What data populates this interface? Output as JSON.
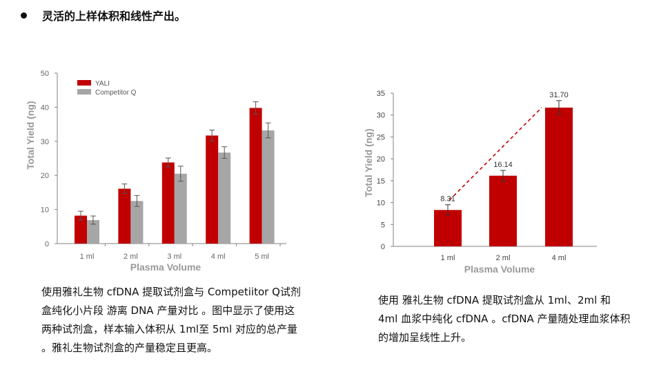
{
  "heading": "灵活的上样体积和线性产出。",
  "captions": {
    "left": "使用雅礼生物 cfDNA 提取试剂盒与 Competiitor Q试剂盒纯化小片段 游离 DNA 产量对比 。图中显示了使用这两种试剂盒，样本输入体积从 1ml至 5ml 对应的总产量 。雅礼生物试剂盒的产量稳定且更高。",
    "right": "使用 雅礼生物 cfDNA 提取试剂盒从 1ml、2ml 和 4ml 血浆中纯化 cfDNA 。cfDNA 产量随处理血浆体积的增加呈线性上升。"
  },
  "colors": {
    "yali": "#c00000",
    "competitor": "#a6a6a6",
    "axis": "#808080",
    "trend": "#c00000"
  },
  "chart_data": [
    {
      "type": "bar",
      "categories": [
        "1 ml",
        "2 ml",
        "3 ml",
        "4 ml",
        "5 ml"
      ],
      "series": [
        {
          "name": "YALI",
          "values": [
            8.2,
            16.1,
            23.8,
            31.7,
            39.8
          ],
          "errors": [
            1.3,
            1.4,
            1.3,
            1.6,
            1.8
          ]
        },
        {
          "name": "Competitor Q",
          "values": [
            6.9,
            12.5,
            20.5,
            26.7,
            33.2
          ],
          "errors": [
            1.2,
            1.6,
            2.2,
            1.7,
            2.2
          ]
        }
      ],
      "xlabel": "Plasma Volume",
      "ylabel": "Total Yield (ng)",
      "ylim": [
        0,
        50
      ],
      "yticks": [
        0,
        10,
        20,
        30,
        40,
        50
      ],
      "legend": "top-left",
      "grid": false
    },
    {
      "type": "bar",
      "categories": [
        "1 ml",
        "2 ml",
        "4 ml"
      ],
      "series": [
        {
          "values": [
            8.31,
            16.14,
            31.7
          ],
          "labels": [
            "8.31",
            "16.14",
            "31.70"
          ],
          "errors": [
            1.2,
            1.2,
            1.6
          ]
        }
      ],
      "trendline": "dashed",
      "xlabel": "Plasma Volume",
      "ylabel": "Total Yield (ng)",
      "ylim": [
        0,
        35
      ],
      "yticks": [
        0,
        5,
        10,
        15,
        20,
        25,
        30,
        35
      ],
      "grid": false
    }
  ]
}
